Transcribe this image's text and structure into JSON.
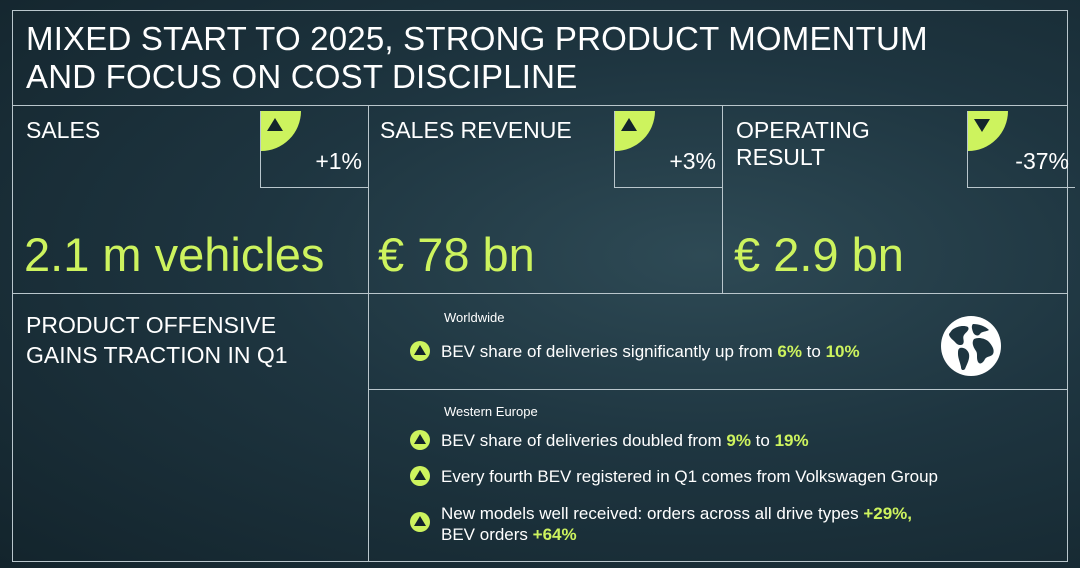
{
  "title": {
    "line1": "MIXED START TO 2025, STRONG PRODUCT MOMENTUM",
    "line2": "AND FOCUS ON COST DISCIPLINE"
  },
  "kpis": [
    {
      "label_lines": [
        "SALES"
      ],
      "change": "+1%",
      "direction": "up",
      "value": "2.1 m vehicles"
    },
    {
      "label_lines": [
        "SALES REVENUE"
      ],
      "change": "+3%",
      "direction": "up",
      "value": "€ 78 bn"
    },
    {
      "label_lines": [
        "OPERATING",
        "RESULT"
      ],
      "change": "-37%",
      "direction": "down",
      "value": "€ 2.9 bn"
    }
  ],
  "section": {
    "title_lines": [
      "PRODUCT OFFENSIVE",
      "GAINS TRACTION IN Q1"
    ]
  },
  "worldwide": {
    "region": "Worldwide",
    "icon": "globe-icon",
    "bullet": {
      "pre": "BEV share of deliveries significantly up from ",
      "v1": "6%",
      "mid": " to ",
      "v2": "10%"
    }
  },
  "western_europe": {
    "region": "Western Europe",
    "bullet1": {
      "pre": "BEV share of deliveries doubled from ",
      "v1": "9%",
      "mid": " to ",
      "v2": "19%"
    },
    "bullet2": {
      "text": "Every fourth BEV registered in Q1 comes from Volkswagen Group"
    },
    "bullet3": {
      "pre": "New models well received: orders across all drive types ",
      "v1": "+29%,",
      "line2_pre": "BEV orders ",
      "v2": "+64%"
    }
  },
  "colors": {
    "accent": "#cdf35e",
    "background": "#1e3540",
    "lines": "#b9c6cc"
  }
}
